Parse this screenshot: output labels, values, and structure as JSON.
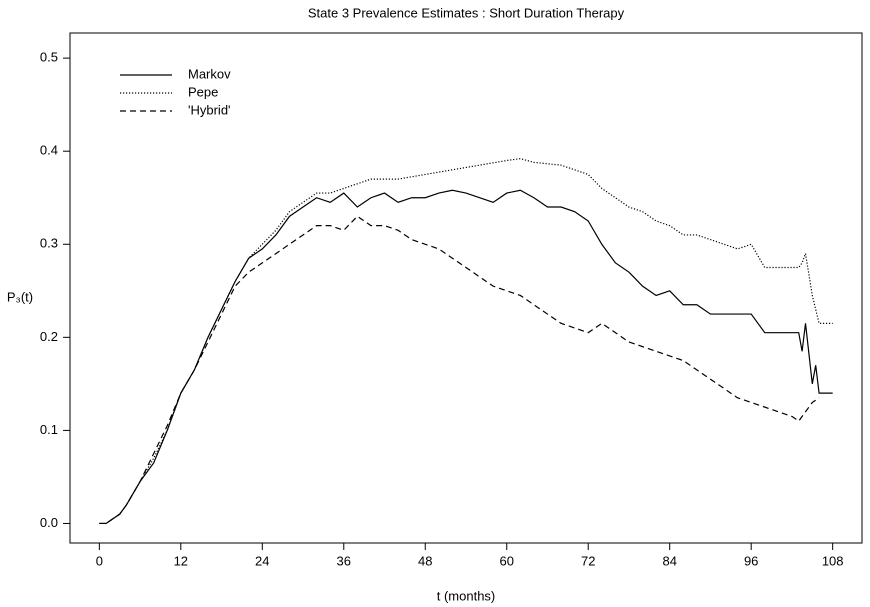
{
  "chart_data": {
    "type": "line",
    "title": "State 3 Prevalence Estimates : Short Duration Therapy",
    "xlabel": "t (months)",
    "ylabel": "P₃(t)",
    "xlim": [
      -4.32,
      112.32
    ],
    "xticks": [
      0,
      12,
      24,
      36,
      48,
      60,
      72,
      84,
      96,
      108
    ],
    "ylim": [
      -0.021,
      0.527
    ],
    "yticks": [
      {
        "value": 0,
        "label": "0.0"
      },
      0.1,
      0.2,
      0.3,
      0.4,
      0.5
    ],
    "legend": "top-left",
    "series": [
      {
        "name": "Markov",
        "color": "#000000",
        "dash": "solid",
        "x": [
          0,
          1,
          2,
          3,
          4,
          6,
          8,
          10,
          12,
          14,
          16,
          18,
          20,
          22,
          24,
          26,
          28,
          30,
          32,
          34,
          36,
          38,
          40,
          42,
          44,
          46,
          48,
          50,
          52,
          54,
          56,
          58,
          60,
          62,
          64,
          66,
          68,
          70,
          72,
          74,
          76,
          78,
          80,
          82,
          84,
          86,
          88,
          90,
          92,
          94,
          96,
          98,
          100,
          102,
          103,
          103.5,
          104,
          105,
          105.5,
          106,
          108
        ],
        "values": [
          0,
          0,
          0.005,
          0.01,
          0.02,
          0.045,
          0.065,
          0.1,
          0.14,
          0.165,
          0.2,
          0.23,
          0.26,
          0.285,
          0.295,
          0.31,
          0.33,
          0.34,
          0.35,
          0.345,
          0.355,
          0.34,
          0.35,
          0.355,
          0.345,
          0.35,
          0.35,
          0.355,
          0.358,
          0.355,
          0.35,
          0.345,
          0.355,
          0.358,
          0.35,
          0.34,
          0.34,
          0.335,
          0.325,
          0.3,
          0.28,
          0.27,
          0.255,
          0.245,
          0.25,
          0.235,
          0.235,
          0.225,
          0.225,
          0.225,
          0.225,
          0.205,
          0.205,
          0.205,
          0.205,
          0.185,
          0.215,
          0.15,
          0.17,
          0.14,
          0.14
        ]
      },
      {
        "name": "Pepe",
        "color": "#000000",
        "dash": "dotted",
        "x": [
          0,
          1,
          2,
          3,
          4,
          6,
          8,
          10,
          12,
          14,
          16,
          18,
          20,
          22,
          24,
          26,
          28,
          30,
          32,
          34,
          36,
          38,
          40,
          44,
          48,
          52,
          56,
          60,
          62,
          64,
          68,
          72,
          74,
          76,
          78,
          80,
          82,
          84,
          86,
          88,
          90,
          92,
          94,
          96,
          98,
          100,
          102,
          103,
          103.5,
          104,
          105,
          105.5,
          106,
          108
        ],
        "values": [
          0,
          0,
          0.005,
          0.01,
          0.02,
          0.045,
          0.07,
          0.1,
          0.14,
          0.165,
          0.2,
          0.23,
          0.26,
          0.285,
          0.3,
          0.315,
          0.335,
          0.345,
          0.355,
          0.355,
          0.36,
          0.365,
          0.37,
          0.37,
          0.375,
          0.38,
          0.385,
          0.39,
          0.392,
          0.388,
          0.385,
          0.375,
          0.36,
          0.35,
          0.34,
          0.335,
          0.325,
          0.32,
          0.31,
          0.31,
          0.305,
          0.3,
          0.295,
          0.3,
          0.275,
          0.275,
          0.275,
          0.275,
          0.28,
          0.29,
          0.245,
          0.23,
          0.215,
          0.215
        ]
      },
      {
        "name": "'Hybrid'",
        "color": "#000000",
        "dash": "dashed",
        "x": [
          0,
          1,
          2,
          3,
          4,
          6,
          8,
          10,
          12,
          14,
          16,
          18,
          20,
          22,
          24,
          26,
          28,
          30,
          32,
          34,
          36,
          38,
          40,
          42,
          44,
          46,
          48,
          50,
          52,
          54,
          56,
          58,
          60,
          62,
          64,
          66,
          68,
          70,
          72,
          74,
          76,
          78,
          80,
          82,
          84,
          86,
          88,
          90,
          92,
          94,
          96,
          98,
          100,
          102,
          103,
          104,
          105,
          106
        ],
        "values": [
          0,
          0,
          0.005,
          0.01,
          0.02,
          0.045,
          0.075,
          0.105,
          0.14,
          0.165,
          0.195,
          0.225,
          0.255,
          0.27,
          0.28,
          0.29,
          0.3,
          0.31,
          0.32,
          0.32,
          0.315,
          0.33,
          0.32,
          0.32,
          0.315,
          0.305,
          0.3,
          0.295,
          0.285,
          0.275,
          0.265,
          0.255,
          0.25,
          0.245,
          0.235,
          0.225,
          0.215,
          0.21,
          0.205,
          0.215,
          0.205,
          0.195,
          0.19,
          0.185,
          0.18,
          0.175,
          0.165,
          0.155,
          0.145,
          0.135,
          0.13,
          0.125,
          0.12,
          0.115,
          0.11,
          0.12,
          0.13,
          0.135
        ]
      }
    ]
  }
}
